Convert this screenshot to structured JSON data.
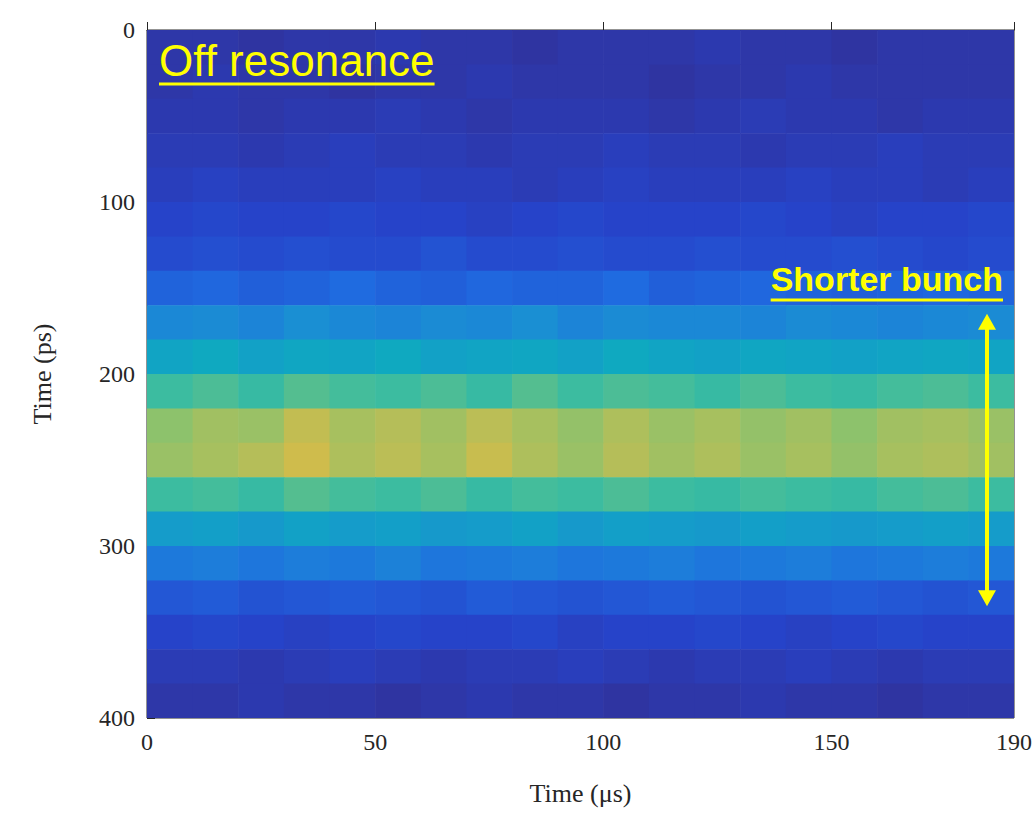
{
  "chart_data": {
    "type": "heatmap",
    "annotations": [
      "Off resonance",
      "Shorter bunch"
    ],
    "arrow_range": [
      165,
      335
    ],
    "xlabel": "Time (μs)",
    "ylabel": "Time (ps)",
    "xlim": [
      0,
      190
    ],
    "xticks": [
      0,
      50,
      100,
      150
    ],
    "ylim": [
      0,
      400
    ],
    "yticks": [
      0,
      100,
      200,
      300,
      400
    ],
    "value_range": [
      0,
      0.8
    ],
    "x_bins": [
      0,
      10,
      20,
      30,
      40,
      50,
      60,
      70,
      80,
      90,
      100,
      110,
      120,
      130,
      140,
      150,
      160,
      170,
      180,
      190
    ],
    "y_bins": [
      0,
      20,
      40,
      60,
      80,
      100,
      120,
      140,
      160,
      180,
      200,
      220,
      240,
      260,
      280,
      300,
      320,
      340,
      360,
      380,
      400
    ],
    "cells": [
      [
        0.05,
        0.05,
        0.04,
        0.05,
        0.05,
        0.06,
        0.05,
        0.05,
        0.04,
        0.05,
        0.05,
        0.05,
        0.06,
        0.05,
        0.05,
        0.04,
        0.05,
        0.05,
        0.05
      ],
      [
        0.05,
        0.06,
        0.05,
        0.05,
        0.04,
        0.05,
        0.05,
        0.06,
        0.05,
        0.05,
        0.05,
        0.04,
        0.05,
        0.05,
        0.06,
        0.05,
        0.05,
        0.05,
        0.05
      ],
      [
        0.06,
        0.06,
        0.05,
        0.06,
        0.06,
        0.07,
        0.06,
        0.05,
        0.06,
        0.06,
        0.06,
        0.05,
        0.06,
        0.07,
        0.06,
        0.06,
        0.05,
        0.06,
        0.06
      ],
      [
        0.07,
        0.07,
        0.06,
        0.07,
        0.08,
        0.07,
        0.07,
        0.06,
        0.07,
        0.07,
        0.08,
        0.07,
        0.07,
        0.06,
        0.07,
        0.07,
        0.08,
        0.07,
        0.07
      ],
      [
        0.08,
        0.09,
        0.08,
        0.08,
        0.08,
        0.09,
        0.08,
        0.08,
        0.07,
        0.08,
        0.09,
        0.08,
        0.08,
        0.08,
        0.09,
        0.08,
        0.08,
        0.07,
        0.08
      ],
      [
        0.1,
        0.11,
        0.1,
        0.1,
        0.11,
        0.1,
        0.1,
        0.09,
        0.1,
        0.11,
        0.1,
        0.1,
        0.1,
        0.11,
        0.1,
        0.09,
        0.1,
        0.1,
        0.11
      ],
      [
        0.12,
        0.13,
        0.12,
        0.13,
        0.12,
        0.12,
        0.14,
        0.12,
        0.12,
        0.13,
        0.12,
        0.12,
        0.13,
        0.12,
        0.12,
        0.13,
        0.12,
        0.11,
        0.12
      ],
      [
        0.18,
        0.19,
        0.17,
        0.18,
        0.2,
        0.18,
        0.17,
        0.19,
        0.18,
        0.18,
        0.2,
        0.17,
        0.18,
        0.19,
        0.18,
        0.17,
        0.18,
        0.19,
        0.18
      ],
      [
        0.28,
        0.29,
        0.27,
        0.3,
        0.28,
        0.27,
        0.29,
        0.28,
        0.3,
        0.27,
        0.29,
        0.28,
        0.28,
        0.27,
        0.29,
        0.28,
        0.27,
        0.28,
        0.29
      ],
      [
        0.38,
        0.4,
        0.37,
        0.39,
        0.38,
        0.4,
        0.37,
        0.38,
        0.39,
        0.37,
        0.4,
        0.38,
        0.37,
        0.39,
        0.38,
        0.37,
        0.38,
        0.39,
        0.38
      ],
      [
        0.5,
        0.52,
        0.49,
        0.53,
        0.51,
        0.5,
        0.52,
        0.49,
        0.53,
        0.5,
        0.52,
        0.51,
        0.49,
        0.52,
        0.5,
        0.49,
        0.51,
        0.52,
        0.5
      ],
      [
        0.6,
        0.63,
        0.62,
        0.68,
        0.64,
        0.66,
        0.63,
        0.67,
        0.64,
        0.61,
        0.65,
        0.62,
        0.64,
        0.61,
        0.63,
        0.6,
        0.63,
        0.64,
        0.62
      ],
      [
        0.62,
        0.64,
        0.66,
        0.7,
        0.65,
        0.67,
        0.64,
        0.69,
        0.65,
        0.62,
        0.66,
        0.63,
        0.65,
        0.62,
        0.64,
        0.61,
        0.64,
        0.65,
        0.63
      ],
      [
        0.5,
        0.51,
        0.49,
        0.53,
        0.51,
        0.5,
        0.52,
        0.49,
        0.51,
        0.5,
        0.52,
        0.5,
        0.49,
        0.51,
        0.5,
        0.49,
        0.51,
        0.52,
        0.5
      ],
      [
        0.35,
        0.36,
        0.34,
        0.37,
        0.35,
        0.36,
        0.34,
        0.35,
        0.37,
        0.34,
        0.36,
        0.35,
        0.34,
        0.36,
        0.35,
        0.34,
        0.35,
        0.36,
        0.35
      ],
      [
        0.24,
        0.25,
        0.23,
        0.25,
        0.24,
        0.26,
        0.23,
        0.24,
        0.25,
        0.23,
        0.24,
        0.25,
        0.23,
        0.24,
        0.25,
        0.23,
        0.24,
        0.25,
        0.24
      ],
      [
        0.15,
        0.16,
        0.14,
        0.15,
        0.16,
        0.15,
        0.14,
        0.16,
        0.15,
        0.14,
        0.15,
        0.16,
        0.15,
        0.14,
        0.15,
        0.16,
        0.15,
        0.14,
        0.15
      ],
      [
        0.1,
        0.11,
        0.1,
        0.09,
        0.1,
        0.11,
        0.1,
        0.1,
        0.11,
        0.09,
        0.1,
        0.1,
        0.11,
        0.1,
        0.09,
        0.1,
        0.11,
        0.1,
        0.1
      ],
      [
        0.07,
        0.07,
        0.06,
        0.07,
        0.08,
        0.07,
        0.06,
        0.07,
        0.07,
        0.08,
        0.07,
        0.06,
        0.07,
        0.07,
        0.08,
        0.07,
        0.06,
        0.07,
        0.07
      ],
      [
        0.05,
        0.05,
        0.06,
        0.05,
        0.05,
        0.04,
        0.05,
        0.06,
        0.05,
        0.05,
        0.04,
        0.05,
        0.05,
        0.06,
        0.05,
        0.05,
        0.04,
        0.05,
        0.05
      ]
    ]
  }
}
